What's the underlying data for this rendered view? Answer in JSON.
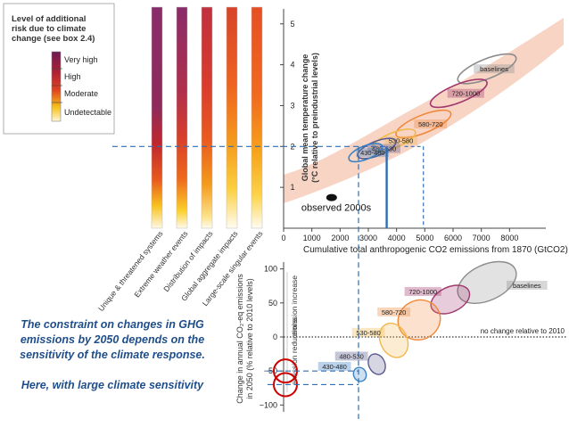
{
  "legend": {
    "title": "Level of additional risk due to climate change (see box 2.4)",
    "title_lines": [
      "Level of additional",
      "risk due to climate",
      "change (see box 2.4)"
    ],
    "levels": [
      {
        "label": "Very high",
        "color": "#7b1b55"
      },
      {
        "label": "High",
        "color": "#c0272d"
      },
      {
        "label": "Moderate",
        "color": "#f2b817"
      },
      {
        "label": "Undetectable",
        "color": "#ffffff"
      }
    ]
  },
  "reasons_for_concern": [
    "Unique & threatened systems",
    "Extreme weather events",
    "Distribution of impacts",
    "Global aggregate impacts",
    "Large-scale singular events"
  ],
  "caption": {
    "line1": "The constraint on changes in GHG emissions by 2050 depends on the sensitivity of the climate response.",
    "line2": "Here, with large climate sensitivity"
  },
  "chart_data": [
    {
      "type": "scatter",
      "title": "",
      "xlabel": "Cumulative total anthropogenic CO2 emissions from 1870 (GtCO2)",
      "ylabel": "Global mean temperature change (°C relative to preindustrial levels)",
      "ylabel_lines": [
        "Global mean temperature change",
        "(°C relative to preindustrial levels)"
      ],
      "xlim": [
        0,
        9000
      ],
      "ylim": [
        0,
        5.3
      ],
      "x_ticks": [
        0,
        1000,
        2000,
        3000,
        4000,
        5000,
        6000,
        7000,
        8000
      ],
      "y_ticks": [
        1,
        2,
        3,
        4,
        5
      ],
      "series": [
        {
          "name": "baselines",
          "x": 7200,
          "y": 3.9,
          "color": "#8c8c8c"
        },
        {
          "name": "720-1000",
          "x": 6200,
          "y": 3.3,
          "color": "#a0386e"
        },
        {
          "name": "580-720",
          "x": 4950,
          "y": 2.55,
          "color": "#f0883a"
        },
        {
          "name": "530-580",
          "x": 3900,
          "y": 2.15,
          "color": "#f2b84b"
        },
        {
          "name": "480-530",
          "x": 3300,
          "y": 1.95,
          "color": "#5a5a90"
        },
        {
          "name": "430-480",
          "x": 2900,
          "y": 1.85,
          "color": "#3a82c4"
        }
      ],
      "observed": {
        "label": "observed 2000s",
        "x": 1700,
        "y": 0.75
      },
      "threshold_temperature": 2,
      "cumulative_limits": [
        3650,
        4950
      ]
    },
    {
      "type": "scatter",
      "ylabel": "Change in annual CO2-eq emissions in 2050 (% relative to 2010 levels)",
      "ylabel_lines": [
        "Change in annual CO₂-eq emissions",
        "in 2050 (% relative to 2010 levels)"
      ],
      "ylim": [
        -110,
        110
      ],
      "y_ticks": [
        100,
        50,
        0,
        -50,
        -100
      ],
      "zero_line_label": "no change relative to 2010",
      "side_labels": {
        "increase": "emission increase",
        "reductions": "emission reductions"
      },
      "series": [
        {
          "name": "baselines",
          "x": 7200,
          "y": 80,
          "color": "#8c8c8c"
        },
        {
          "name": "720-1000",
          "x": 5900,
          "y": 55,
          "color": "#a0386e"
        },
        {
          "name": "580-720",
          "x": 4800,
          "y": 25,
          "color": "#f0883a"
        },
        {
          "name": "530-580",
          "x": 3900,
          "y": -5,
          "color": "#f2b84b"
        },
        {
          "name": "480-530",
          "x": 3300,
          "y": -40,
          "color": "#5a5a90"
        },
        {
          "name": "430-480",
          "x": 2700,
          "y": -55,
          "color": "#3a82c4"
        }
      ],
      "required_reduction_range": [
        -50,
        -70
      ]
    }
  ]
}
